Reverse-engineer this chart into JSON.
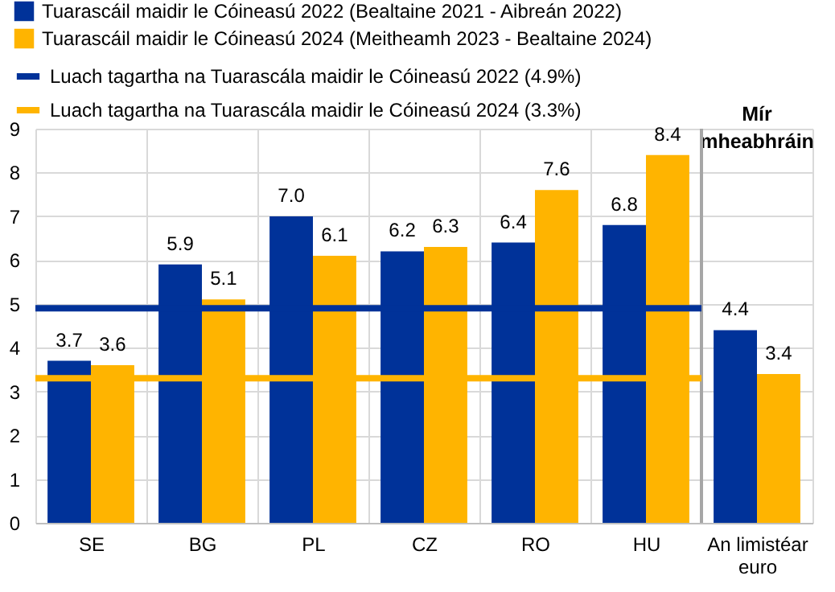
{
  "chart_data": {
    "type": "bar",
    "categories": [
      "SE",
      "BG",
      "PL",
      "CZ",
      "RO",
      "HU",
      "An limistéar euro"
    ],
    "series": [
      {
        "name": "Tuarascáil maidir le Cóineasú 2022 (Bealtaine 2021 - Aibreán 2022)",
        "color": "#003299",
        "values": [
          3.7,
          5.9,
          7.0,
          6.2,
          6.4,
          6.8,
          4.4
        ],
        "value_labels": [
          "3.7",
          "5.9",
          "7.0",
          "6.2",
          "6.4",
          "6.8",
          "4.4"
        ]
      },
      {
        "name": "Tuarascáil maidir le Cóineasú 2024 (Meitheamh 2023 - Bealtaine 2024)",
        "color": "#ffb400",
        "values": [
          3.6,
          5.1,
          6.1,
          6.3,
          7.6,
          8.4,
          3.4
        ],
        "value_labels": [
          "3.6",
          "5.1",
          "6.1",
          "6.3",
          "7.6",
          "8.4",
          "3.4"
        ]
      }
    ],
    "ref_lines": [
      {
        "axis": "y",
        "value": 4.9,
        "label": "Luach tagartha na Tuarascála maidir le Cóineasú 2022 (4.9%)",
        "color": "#003299"
      },
      {
        "axis": "y",
        "value": 3.3,
        "label": "Luach tagartha na Tuarascála maidir le Cóineasú 2024 (3.3%)",
        "color": "#ffb400"
      }
    ],
    "annotations": [
      "Mír mheabhráin"
    ],
    "ylim": [
      0,
      9
    ],
    "yticks": [
      0,
      1,
      2,
      3,
      4,
      5,
      6,
      7,
      8,
      9
    ],
    "grid": true,
    "legend": "top left"
  }
}
